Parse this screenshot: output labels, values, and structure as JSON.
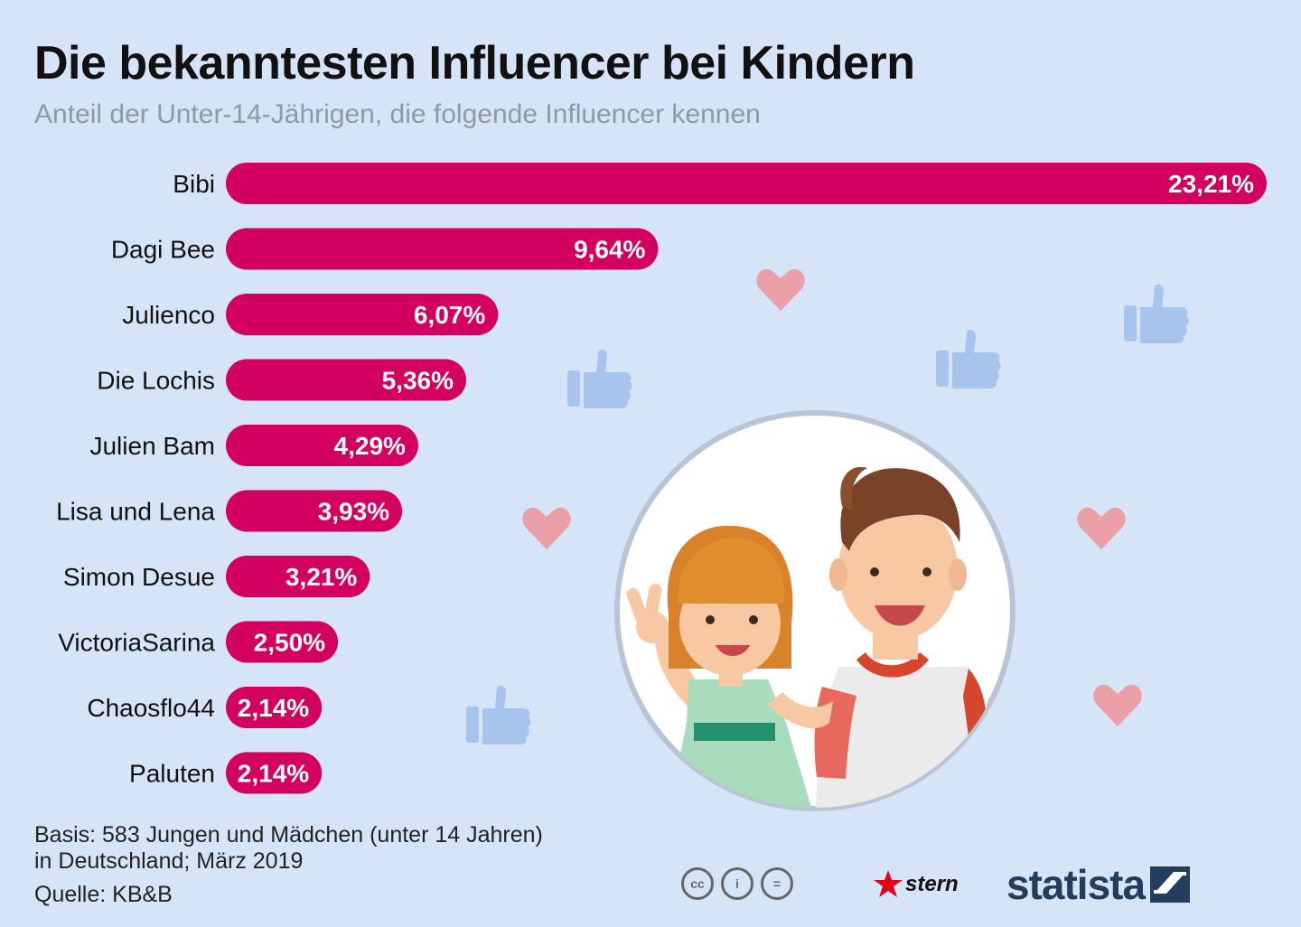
{
  "title": "Die bekanntesten Influencer bei Kindern",
  "subtitle": "Anteil der Unter-14-Jährigen, die folgende Influencer kennen",
  "chart_data": {
    "type": "bar",
    "orientation": "horizontal",
    "title": "Die bekanntesten Influencer bei Kindern",
    "subtitle": "Anteil der Unter-14-Jährigen, die folgende Influencer kennen",
    "categories": [
      "Bibi",
      "Dagi Bee",
      "Julienco",
      "Die Lochis",
      "Julien Bam",
      "Lisa und Lena",
      "Simon Desue",
      "VictoriaSarina",
      "Chaosflo44",
      "Paluten"
    ],
    "values": [
      23.21,
      9.64,
      6.07,
      5.36,
      4.29,
      3.93,
      3.21,
      2.5,
      2.14,
      2.14
    ],
    "value_labels": [
      "23,21%",
      "9,64%",
      "6,07%",
      "5,36%",
      "4,29%",
      "3,93%",
      "3,21%",
      "2,50%",
      "2,14%",
      "2,14%"
    ],
    "unit": "%",
    "xlim": [
      0,
      23.21
    ],
    "color": "#d4005f"
  },
  "footnote": {
    "line1": "Basis: 583 Jungen und Mädchen (unter 14 Jahren)",
    "line2": "in Deutschland; März 2019"
  },
  "source": "Quelle: KB&B",
  "license_icons": [
    "cc",
    "i",
    "="
  ],
  "brand": {
    "stern": "stern",
    "statista": "statista"
  },
  "colors": {
    "background": "#d6e4f7",
    "bar": "#d4005f",
    "subtitle": "#8d99a6",
    "heart": "#eaa0a6",
    "thumb": "#a6c4ec"
  }
}
